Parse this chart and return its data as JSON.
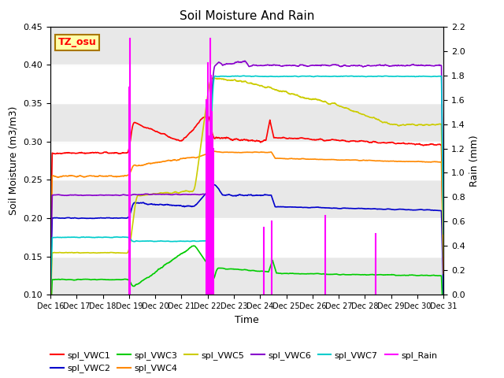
{
  "title": "Soil Moisture And Rain",
  "xlabel": "Time",
  "ylabel_left": "Soil Moisture (m3/m3)",
  "ylabel_right": "Rain (mm)",
  "station_label": "TZ_osu",
  "xlim": [
    0,
    15
  ],
  "ylim_left": [
    0.1,
    0.45
  ],
  "ylim_right": [
    0.0,
    2.2
  ],
  "xtick_labels": [
    "Dec 16",
    "Dec 17",
    "Dec 18",
    "Dec 19",
    "Dec 20",
    "Dec 21",
    "Dec 22",
    "Dec 23",
    "Dec 24",
    "Dec 25",
    "Dec 26",
    "Dec 27",
    "Dec 28",
    "Dec 29",
    "Dec 30",
    "Dec 31"
  ],
  "yticks_left": [
    0.1,
    0.15,
    0.2,
    0.25,
    0.3,
    0.35,
    0.4,
    0.45
  ],
  "yticks_right": [
    0.0,
    0.2,
    0.4,
    0.6,
    0.8,
    1.0,
    1.2,
    1.4,
    1.6,
    1.8,
    2.0,
    2.2
  ],
  "colors": {
    "VWC1": "#ff0000",
    "VWC2": "#0000cc",
    "VWC3": "#00cc00",
    "VWC4": "#ff8800",
    "VWC5": "#cccc00",
    "VWC6": "#8800cc",
    "VWC7": "#00cccc",
    "Rain": "#ff00ff"
  },
  "bg_gray": "#e8e8e8",
  "bg_white": "#ffffff",
  "legend_row1": [
    {
      "label": "spl_VWC1",
      "color": "#ff0000"
    },
    {
      "label": "spl_VWC2",
      "color": "#0000cc"
    },
    {
      "label": "spl_VWC3",
      "color": "#00cc00"
    },
    {
      "label": "spl_VWC4",
      "color": "#ff8800"
    },
    {
      "label": "spl_VWC5",
      "color": "#cccc00"
    },
    {
      "label": "spl_VWC6",
      "color": "#8800cc"
    }
  ],
  "legend_row2": [
    {
      "label": "spl_VWC7",
      "color": "#00cccc"
    },
    {
      "label": "spl_Rain",
      "color": "#ff00ff"
    }
  ]
}
